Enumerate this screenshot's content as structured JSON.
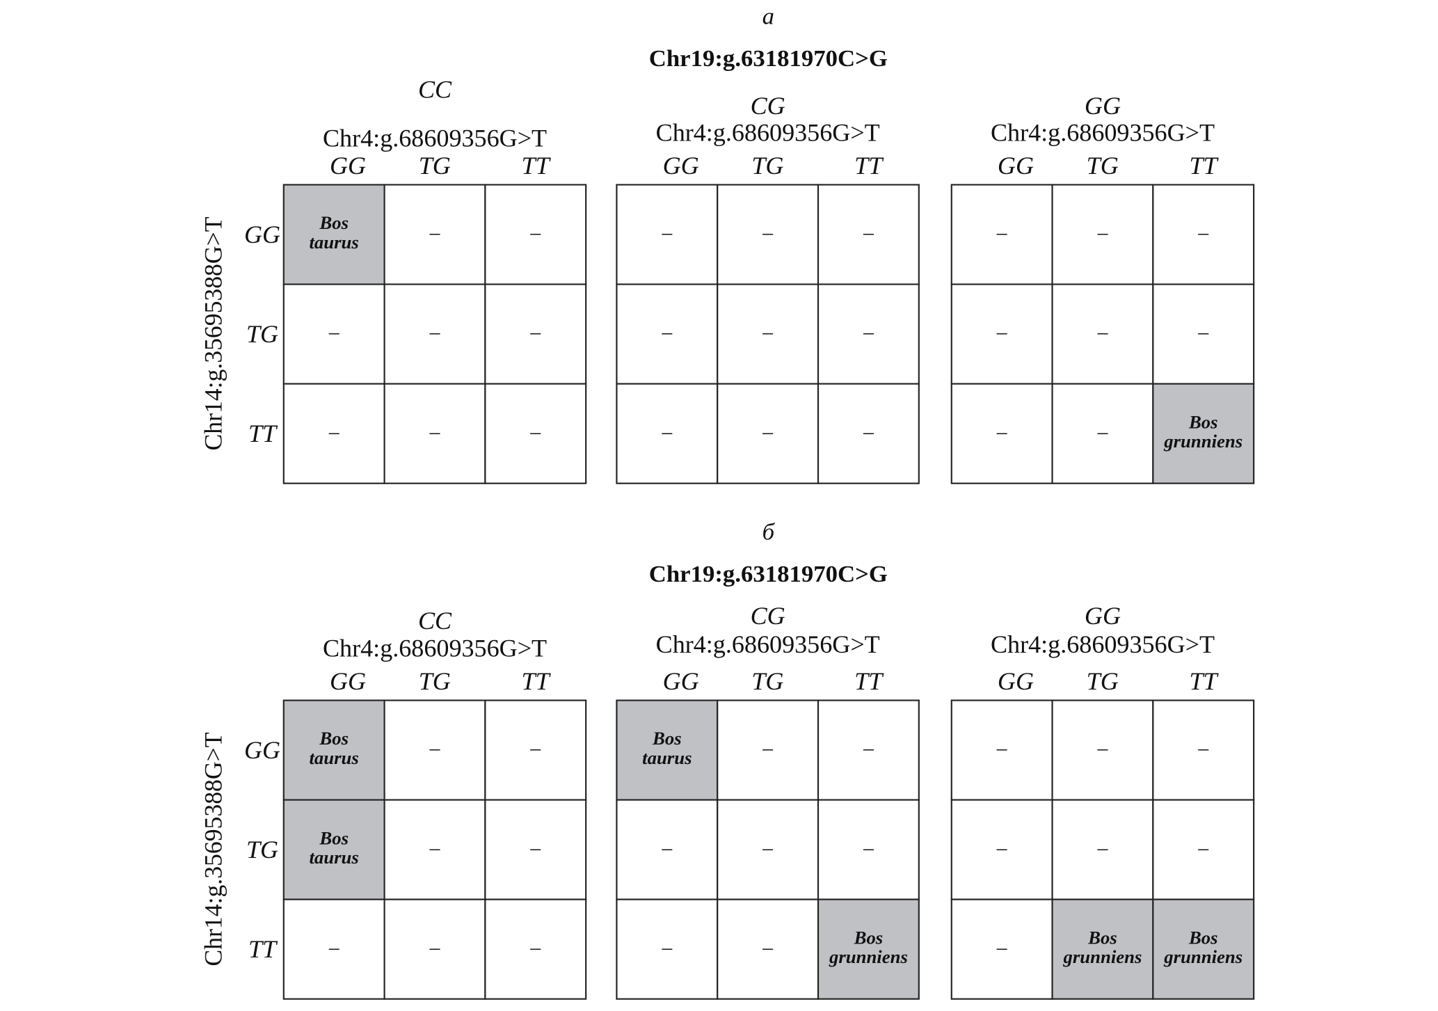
{
  "panels": [
    {
      "label": "а",
      "title": "Chr19:g.63181970C>G",
      "row_axis": "Chr14:g.35695388G>T",
      "rows": [
        "GG",
        "TG",
        "TT"
      ],
      "groups": [
        {
          "genotype": "CC",
          "axis": "Chr4:g.68609356G>T",
          "columns": [
            "GG",
            "TG",
            "TT"
          ],
          "cells": [
            [
              {
                "lines": [
                  "Bos",
                  "taurus"
                ],
                "shaded": true
              },
              {
                "lines": [
                  "–"
                ],
                "shaded": false
              },
              {
                "lines": [
                  "–"
                ],
                "shaded": false
              }
            ],
            [
              {
                "lines": [
                  "–"
                ],
                "shaded": false
              },
              {
                "lines": [
                  "–"
                ],
                "shaded": false
              },
              {
                "lines": [
                  "–"
                ],
                "shaded": false
              }
            ],
            [
              {
                "lines": [
                  "–"
                ],
                "shaded": false
              },
              {
                "lines": [
                  "–"
                ],
                "shaded": false
              },
              {
                "lines": [
                  "–"
                ],
                "shaded": false
              }
            ]
          ]
        },
        {
          "genotype": "CG",
          "axis": "Chr4:g.68609356G>T",
          "columns": [
            "GG",
            "TG",
            "TT"
          ],
          "cells": [
            [
              {
                "lines": [
                  "–"
                ],
                "shaded": false
              },
              {
                "lines": [
                  "–"
                ],
                "shaded": false
              },
              {
                "lines": [
                  "–"
                ],
                "shaded": false
              }
            ],
            [
              {
                "lines": [
                  "–"
                ],
                "shaded": false
              },
              {
                "lines": [
                  "–"
                ],
                "shaded": false
              },
              {
                "lines": [
                  "–"
                ],
                "shaded": false
              }
            ],
            [
              {
                "lines": [
                  "–"
                ],
                "shaded": false
              },
              {
                "lines": [
                  "–"
                ],
                "shaded": false
              },
              {
                "lines": [
                  "–"
                ],
                "shaded": false
              }
            ]
          ]
        },
        {
          "genotype": "GG",
          "axis": "Chr4:g.68609356G>T",
          "columns": [
            "GG",
            "TG",
            "TT"
          ],
          "cells": [
            [
              {
                "lines": [
                  "–"
                ],
                "shaded": false
              },
              {
                "lines": [
                  "–"
                ],
                "shaded": false
              },
              {
                "lines": [
                  "–"
                ],
                "shaded": false
              }
            ],
            [
              {
                "lines": [
                  "–"
                ],
                "shaded": false
              },
              {
                "lines": [
                  "–"
                ],
                "shaded": false
              },
              {
                "lines": [
                  "–"
                ],
                "shaded": false
              }
            ],
            [
              {
                "lines": [
                  "–"
                ],
                "shaded": false
              },
              {
                "lines": [
                  "–"
                ],
                "shaded": false
              },
              {
                "lines": [
                  "Bos",
                  "grunniens"
                ],
                "shaded": true
              }
            ]
          ]
        }
      ]
    },
    {
      "label": "б",
      "title": "Chr19:g.63181970C>G",
      "row_axis": "Chr14:g.35695388G>T",
      "rows": [
        "GG",
        "TG",
        "TT"
      ],
      "groups": [
        {
          "genotype": "CC",
          "axis": "Chr4:g.68609356G>T",
          "columns": [
            "GG",
            "TG",
            "TT"
          ],
          "cells": [
            [
              {
                "lines": [
                  "Bos",
                  "taurus"
                ],
                "shaded": true
              },
              {
                "lines": [
                  "–"
                ],
                "shaded": false
              },
              {
                "lines": [
                  "–"
                ],
                "shaded": false
              }
            ],
            [
              {
                "lines": [
                  "Bos",
                  "taurus"
                ],
                "shaded": true
              },
              {
                "lines": [
                  "–"
                ],
                "shaded": false
              },
              {
                "lines": [
                  "–"
                ],
                "shaded": false
              }
            ],
            [
              {
                "lines": [
                  "–"
                ],
                "shaded": false
              },
              {
                "lines": [
                  "–"
                ],
                "shaded": false
              },
              {
                "lines": [
                  "–"
                ],
                "shaded": false
              }
            ]
          ]
        },
        {
          "genotype": "CG",
          "axis": "Chr4:g.68609356G>T",
          "columns": [
            "GG",
            "TG",
            "TT"
          ],
          "cells": [
            [
              {
                "lines": [
                  "Bos",
                  "taurus"
                ],
                "shaded": true
              },
              {
                "lines": [
                  "–"
                ],
                "shaded": false
              },
              {
                "lines": [
                  "–"
                ],
                "shaded": false
              }
            ],
            [
              {
                "lines": [
                  "–"
                ],
                "shaded": false
              },
              {
                "lines": [
                  "–"
                ],
                "shaded": false
              },
              {
                "lines": [
                  "–"
                ],
                "shaded": false
              }
            ],
            [
              {
                "lines": [
                  "–"
                ],
                "shaded": false
              },
              {
                "lines": [
                  "–"
                ],
                "shaded": false
              },
              {
                "lines": [
                  "Bos",
                  "grunniens"
                ],
                "shaded": true
              }
            ]
          ]
        },
        {
          "genotype": "GG",
          "axis": "Chr4:g.68609356G>T",
          "columns": [
            "GG",
            "TG",
            "TT"
          ],
          "cells": [
            [
              {
                "lines": [
                  "–"
                ],
                "shaded": false
              },
              {
                "lines": [
                  "–"
                ],
                "shaded": false
              },
              {
                "lines": [
                  "–"
                ],
                "shaded": false
              }
            ],
            [
              {
                "lines": [
                  "–"
                ],
                "shaded": false
              },
              {
                "lines": [
                  "–"
                ],
                "shaded": false
              },
              {
                "lines": [
                  "–"
                ],
                "shaded": false
              }
            ],
            [
              {
                "lines": [
                  "–"
                ],
                "shaded": false
              },
              {
                "lines": [
                  "Bos",
                  "grunniens"
                ],
                "shaded": true
              },
              {
                "lines": [
                  "Bos",
                  "grunniens"
                ],
                "shaded": true
              }
            ]
          ]
        }
      ]
    }
  ]
}
